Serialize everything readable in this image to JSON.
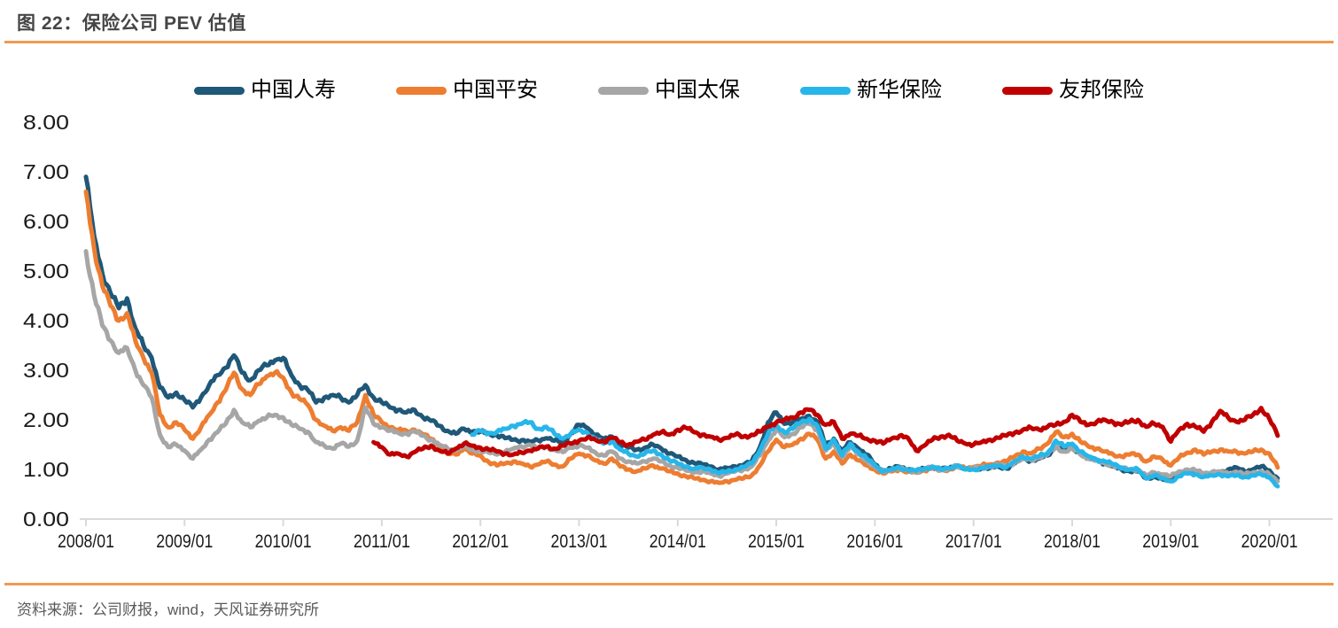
{
  "figure": {
    "title": "图 22：保险公司 PEV 估值",
    "source": "资料来源：公司财报，wind，天风证券研究所"
  },
  "colors": {
    "accent_rule": "#F09B52",
    "axis_line": "#D9D9D9",
    "title_text": "#454545",
    "source_text": "#595959",
    "tick_label_text": "#1A1A1A"
  },
  "chart_data": {
    "type": "line",
    "title": "保险公司 PEV 估值",
    "xlabel": "",
    "ylabel": "",
    "ylim": [
      0,
      8
    ],
    "grid": false,
    "legend_position": "top",
    "y_tick_labels": [
      "0.00",
      "1.00",
      "2.00",
      "3.00",
      "4.00",
      "5.00",
      "6.00",
      "7.00",
      "8.00"
    ],
    "x_tick_labels": [
      "2008/01",
      "2009/01",
      "2010/01",
      "2011/01",
      "2012/01",
      "2013/01",
      "2014/01",
      "2015/01",
      "2016/01",
      "2017/01",
      "2018/01",
      "2019/01",
      "2020/01"
    ],
    "x_unit": "month",
    "x_origin": "2008/01",
    "series": [
      {
        "id": "china-life",
        "name": "中国人寿",
        "color": "#1F5878",
        "start_month": "2008/01",
        "monthly_values": [
          6.9,
          5.7,
          4.95,
          4.55,
          4.25,
          4.45,
          3.85,
          3.5,
          3.25,
          2.65,
          2.45,
          2.55,
          2.4,
          2.25,
          2.45,
          2.7,
          2.9,
          3.05,
          3.3,
          2.95,
          2.8,
          3.0,
          3.1,
          3.2,
          3.25,
          2.9,
          2.7,
          2.6,
          2.35,
          2.45,
          2.5,
          2.45,
          2.35,
          2.5,
          2.7,
          2.45,
          2.35,
          2.25,
          2.2,
          2.15,
          2.2,
          2.05,
          1.98,
          1.88,
          1.78,
          1.72,
          1.82,
          1.76,
          1.76,
          1.73,
          1.69,
          1.63,
          1.6,
          1.59,
          1.56,
          1.59,
          1.63,
          1.58,
          1.55,
          1.72,
          1.9,
          1.84,
          1.7,
          1.62,
          1.66,
          1.5,
          1.44,
          1.4,
          1.44,
          1.5,
          1.42,
          1.32,
          1.26,
          1.19,
          1.13,
          1.1,
          1.06,
          1.0,
          1.03,
          1.06,
          1.09,
          1.16,
          1.45,
          1.95,
          2.15,
          1.92,
          1.96,
          2.02,
          2.08,
          1.95,
          1.48,
          1.62,
          1.38,
          1.55,
          1.42,
          1.3,
          1.1,
          0.98,
          1.02,
          1.05,
          1.0,
          0.98,
          1.02,
          1.05,
          1.0,
          1.02,
          1.08,
          1.02,
          1.0,
          1.02,
          1.03,
          1.06,
          1.02,
          1.12,
          1.22,
          1.18,
          1.22,
          1.28,
          1.45,
          1.38,
          1.46,
          1.32,
          1.22,
          1.18,
          1.12,
          1.06,
          1.0,
          0.96,
          0.96,
          0.82,
          0.86,
          0.8,
          0.78,
          0.92,
          0.96,
          0.94,
          0.88,
          0.9,
          0.94,
          1.0,
          1.04,
          0.96,
          1.0,
          1.06,
          0.98,
          0.82
        ]
      },
      {
        "id": "ping-an",
        "name": "中国平安",
        "color": "#ED7D31",
        "start_month": "2008/01",
        "monthly_values": [
          6.6,
          5.45,
          4.7,
          4.3,
          4.0,
          4.15,
          3.6,
          3.25,
          2.95,
          2.1,
          1.85,
          1.95,
          1.8,
          1.62,
          1.85,
          2.1,
          2.35,
          2.6,
          2.95,
          2.62,
          2.5,
          2.72,
          2.88,
          2.95,
          2.85,
          2.55,
          2.42,
          2.3,
          2.0,
          1.88,
          1.78,
          1.85,
          1.78,
          1.95,
          2.5,
          2.1,
          1.95,
          1.85,
          1.8,
          1.78,
          1.8,
          1.7,
          1.62,
          1.5,
          1.32,
          1.3,
          1.42,
          1.32,
          1.28,
          1.15,
          1.08,
          1.12,
          1.16,
          1.12,
          1.06,
          1.1,
          1.16,
          1.1,
          1.06,
          1.22,
          1.32,
          1.28,
          1.18,
          1.12,
          1.22,
          1.06,
          1.0,
          0.96,
          1.02,
          1.08,
          1.02,
          0.96,
          0.92,
          0.86,
          0.82,
          0.79,
          0.76,
          0.73,
          0.76,
          0.79,
          0.82,
          0.88,
          1.08,
          1.36,
          1.6,
          1.45,
          1.5,
          1.62,
          1.72,
          1.6,
          1.22,
          1.36,
          1.12,
          1.3,
          1.18,
          1.08,
          1.0,
          0.92,
          0.96,
          1.0,
          0.95,
          0.94,
          0.98,
          1.02,
          0.98,
          1.0,
          1.06,
          1.02,
          1.05,
          1.08,
          1.1,
          1.14,
          1.16,
          1.26,
          1.36,
          1.32,
          1.42,
          1.52,
          1.75,
          1.65,
          1.72,
          1.56,
          1.46,
          1.42,
          1.36,
          1.3,
          1.26,
          1.3,
          1.3,
          1.16,
          1.26,
          1.2,
          1.08,
          1.24,
          1.34,
          1.4,
          1.3,
          1.36,
          1.4,
          1.36,
          1.36,
          1.32,
          1.36,
          1.4,
          1.32,
          1.04
        ]
      },
      {
        "id": "cpic",
        "name": "中国太保",
        "color": "#A6A6A6",
        "start_month": "2008/01",
        "monthly_values": [
          5.4,
          4.5,
          3.9,
          3.6,
          3.35,
          3.45,
          3.0,
          2.7,
          2.45,
          1.7,
          1.45,
          1.5,
          1.38,
          1.22,
          1.4,
          1.6,
          1.75,
          1.92,
          2.2,
          1.95,
          1.85,
          1.98,
          2.05,
          2.1,
          2.05,
          1.9,
          1.82,
          1.76,
          1.55,
          1.48,
          1.42,
          1.52,
          1.46,
          1.58,
          2.25,
          1.92,
          1.85,
          1.78,
          1.74,
          1.72,
          1.76,
          1.68,
          1.6,
          1.5,
          1.42,
          1.38,
          1.46,
          1.4,
          1.38,
          1.34,
          1.3,
          1.36,
          1.42,
          1.46,
          1.5,
          1.42,
          1.46,
          1.4,
          1.35,
          1.44,
          1.48,
          1.44,
          1.34,
          1.28,
          1.36,
          1.22,
          1.16,
          1.12,
          1.16,
          1.22,
          1.16,
          1.08,
          1.04,
          0.98,
          0.94,
          0.96,
          0.92,
          0.87,
          0.92,
          0.96,
          1.0,
          1.06,
          1.28,
          1.58,
          1.8,
          1.65,
          1.72,
          1.85,
          1.92,
          1.8,
          1.38,
          1.52,
          1.25,
          1.45,
          1.3,
          1.18,
          1.05,
          0.95,
          1.0,
          1.03,
          0.98,
          0.96,
          1.0,
          1.04,
          0.99,
          1.01,
          1.07,
          1.0,
          1.02,
          1.05,
          1.06,
          1.09,
          1.06,
          1.14,
          1.22,
          1.19,
          1.24,
          1.3,
          1.45,
          1.36,
          1.42,
          1.3,
          1.22,
          1.18,
          1.12,
          1.08,
          1.02,
          1.0,
          1.0,
          0.88,
          0.94,
          0.9,
          0.86,
          0.96,
          1.0,
          0.98,
          0.92,
          0.95,
          0.96,
          0.92,
          0.95,
          0.9,
          0.94,
          0.96,
          0.9,
          0.76
        ]
      },
      {
        "id": "nci",
        "name": "新华保险",
        "color": "#27B6EA",
        "start_month": "2011/12",
        "monthly_values": [
          1.7,
          1.78,
          1.72,
          1.76,
          1.82,
          1.88,
          1.92,
          1.95,
          1.82,
          1.86,
          1.72,
          1.62,
          1.72,
          1.8,
          1.74,
          1.6,
          1.52,
          1.58,
          1.4,
          1.32,
          1.26,
          1.32,
          1.38,
          1.3,
          1.18,
          1.12,
          1.06,
          1.01,
          1.04,
          1.0,
          0.92,
          0.96,
          1.0,
          1.05,
          1.12,
          1.38,
          1.72,
          1.9,
          1.75,
          1.82,
          1.95,
          2.02,
          1.88,
          1.42,
          1.6,
          1.28,
          1.52,
          1.35,
          1.22,
          1.08,
          0.96,
          1.0,
          1.04,
          0.99,
          0.97,
          1.01,
          1.06,
          1.0,
          1.02,
          1.08,
          1.0,
          1.0,
          1.03,
          1.05,
          1.08,
          1.05,
          1.16,
          1.26,
          1.21,
          1.27,
          1.33,
          1.58,
          1.46,
          1.52,
          1.36,
          1.26,
          1.2,
          1.16,
          1.1,
          1.04,
          1.0,
          1.0,
          0.82,
          0.88,
          0.82,
          0.76,
          0.86,
          0.92,
          0.9,
          0.85,
          0.88,
          0.9,
          0.86,
          0.88,
          0.85,
          0.88,
          0.9,
          0.84,
          0.66
        ]
      },
      {
        "id": "aia",
        "name": "友邦保险",
        "color": "#C00000",
        "start_month": "2010/12",
        "monthly_values": [
          1.55,
          1.45,
          1.3,
          1.32,
          1.26,
          1.35,
          1.42,
          1.48,
          1.38,
          1.32,
          1.42,
          1.52,
          1.48,
          1.44,
          1.4,
          1.36,
          1.32,
          1.3,
          1.34,
          1.38,
          1.42,
          1.46,
          1.42,
          1.48,
          1.52,
          1.58,
          1.64,
          1.6,
          1.56,
          1.64,
          1.55,
          1.5,
          1.56,
          1.6,
          1.7,
          1.75,
          1.7,
          1.8,
          1.84,
          1.75,
          1.7,
          1.66,
          1.6,
          1.64,
          1.7,
          1.66,
          1.7,
          1.76,
          1.86,
          1.95,
          2.0,
          2.05,
          2.15,
          2.2,
          2.1,
          1.9,
          1.96,
          1.62,
          1.72,
          1.68,
          1.62,
          1.58,
          1.52,
          1.62,
          1.68,
          1.64,
          1.38,
          1.48,
          1.6,
          1.66,
          1.7,
          1.58,
          1.52,
          1.5,
          1.55,
          1.6,
          1.64,
          1.68,
          1.74,
          1.8,
          1.84,
          1.8,
          1.86,
          1.9,
          1.96,
          2.1,
          1.96,
          1.9,
          1.96,
          2.0,
          1.95,
          1.9,
          1.96,
          2.0,
          1.86,
          1.92,
          1.86,
          1.56,
          1.8,
          1.92,
          1.86,
          1.76,
          1.96,
          2.18,
          2.04,
          1.96,
          2.0,
          2.1,
          2.24,
          2.02,
          1.68
        ]
      }
    ]
  }
}
